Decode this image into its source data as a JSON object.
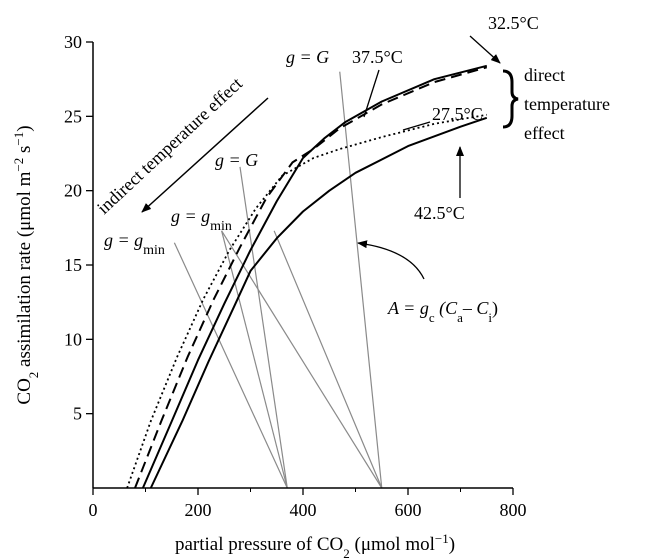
{
  "chart_data": {
    "type": "line",
    "title": "",
    "xlabel": {
      "text": "partial pressure of CO",
      "sub": "2",
      "rest": " (μmol mol",
      "sup": "−1",
      "close": ")"
    },
    "ylabel": {
      "pre": "CO",
      "sub": "2",
      "mid": " assimilation rate (μmol m",
      "sup1": "−2",
      "mid2": " s",
      "sup2": "−1",
      "close": ")"
    },
    "xlim": [
      0,
      800
    ],
    "ylim": [
      0,
      30
    ],
    "x_ticks": [
      0,
      200,
      400,
      600,
      800
    ],
    "y_ticks": [
      5,
      10,
      15,
      20,
      25,
      30
    ],
    "x_tick_labels": [
      "0",
      "200",
      "400",
      "600",
      "800"
    ],
    "y_tick_labels": [
      "5",
      "10",
      "15",
      "20",
      "25",
      "30"
    ],
    "grid": false,
    "series": [
      {
        "name": "32.5°C",
        "style": "solid",
        "points": [
          [
            95,
            0
          ],
          [
            150,
            4.5
          ],
          [
            200,
            8.6
          ],
          [
            250,
            12.4
          ],
          [
            300,
            16
          ],
          [
            350,
            19.3
          ],
          [
            400,
            22.2
          ],
          [
            440,
            23.5
          ],
          [
            480,
            24.6
          ],
          [
            550,
            26
          ],
          [
            650,
            27.5
          ],
          [
            750,
            28.4
          ]
        ]
      },
      {
        "name": "37.5°C",
        "style": "dashed",
        "points": [
          [
            80,
            0
          ],
          [
            130,
            4.5
          ],
          [
            180,
            8.8
          ],
          [
            230,
            12.7
          ],
          [
            280,
            16.2
          ],
          [
            330,
            19.5
          ],
          [
            380,
            21.9
          ],
          [
            420,
            22.8
          ],
          [
            470,
            24.2
          ],
          [
            550,
            25.8
          ],
          [
            650,
            27.3
          ],
          [
            750,
            28.3
          ]
        ]
      },
      {
        "name": "27.5°C",
        "style": "dotted",
        "points": [
          [
            65,
            0
          ],
          [
            110,
            4.5
          ],
          [
            160,
            8.8
          ],
          [
            210,
            12.7
          ],
          [
            260,
            16
          ],
          [
            310,
            18.8
          ],
          [
            360,
            21
          ],
          [
            420,
            22.2
          ],
          [
            470,
            22.8
          ],
          [
            550,
            23.6
          ],
          [
            650,
            24.5
          ],
          [
            750,
            25.1
          ]
        ]
      },
      {
        "name": "42.5°C",
        "style": "solid",
        "points": [
          [
            110,
            0
          ],
          [
            170,
            4.5
          ],
          [
            220,
            8.5
          ],
          [
            270,
            12.3
          ],
          [
            300,
            14.6
          ],
          [
            350,
            16.8
          ],
          [
            400,
            18.6
          ],
          [
            450,
            20
          ],
          [
            500,
            21.2
          ],
          [
            600,
            23
          ],
          [
            700,
            24.3
          ],
          [
            750,
            24.9
          ]
        ]
      }
    ],
    "supply_lines": [
      {
        "label": "g = gmin",
        "from": [
          155,
          16.5
        ],
        "to": [
          370,
          0
        ]
      },
      {
        "label": "g = gmin",
        "from": [
          245,
          17.3
        ],
        "to": [
          370,
          0
        ]
      },
      {
        "label": "g = G",
        "from": [
          280,
          21.6
        ],
        "to": [
          370,
          0
        ]
      },
      {
        "label": "g = G",
        "from": [
          345,
          17.3
        ],
        "to": [
          550,
          0
        ]
      },
      {
        "label": "g = gmin",
        "from": [
          245,
          17.3
        ],
        "to": [
          550,
          0
        ]
      },
      {
        "label": "g = G",
        "from": [
          470,
          28
        ],
        "to": [
          550,
          0
        ]
      }
    ],
    "annotations": {
      "label_32": "32.5°C",
      "label_37": "37.5°C",
      "label_27": "27.5°C",
      "label_42": "42.5°C",
      "direct_1": "direct",
      "direct_2": "temperature",
      "direct_3": "effect",
      "indirect": "indirect temperature effect",
      "g_eq": "g = ",
      "g_G": "G",
      "g_min_base": "g",
      "g_min_sub": "min",
      "A_eq": "A = g",
      "A_c": "c",
      "A_open": " (C",
      "A_a": "a",
      "A_minus": "– C",
      "A_i": "i",
      "A_close": ")"
    },
    "colors": {
      "curve": "#000000",
      "supply_line": "#8a8a8a"
    }
  }
}
